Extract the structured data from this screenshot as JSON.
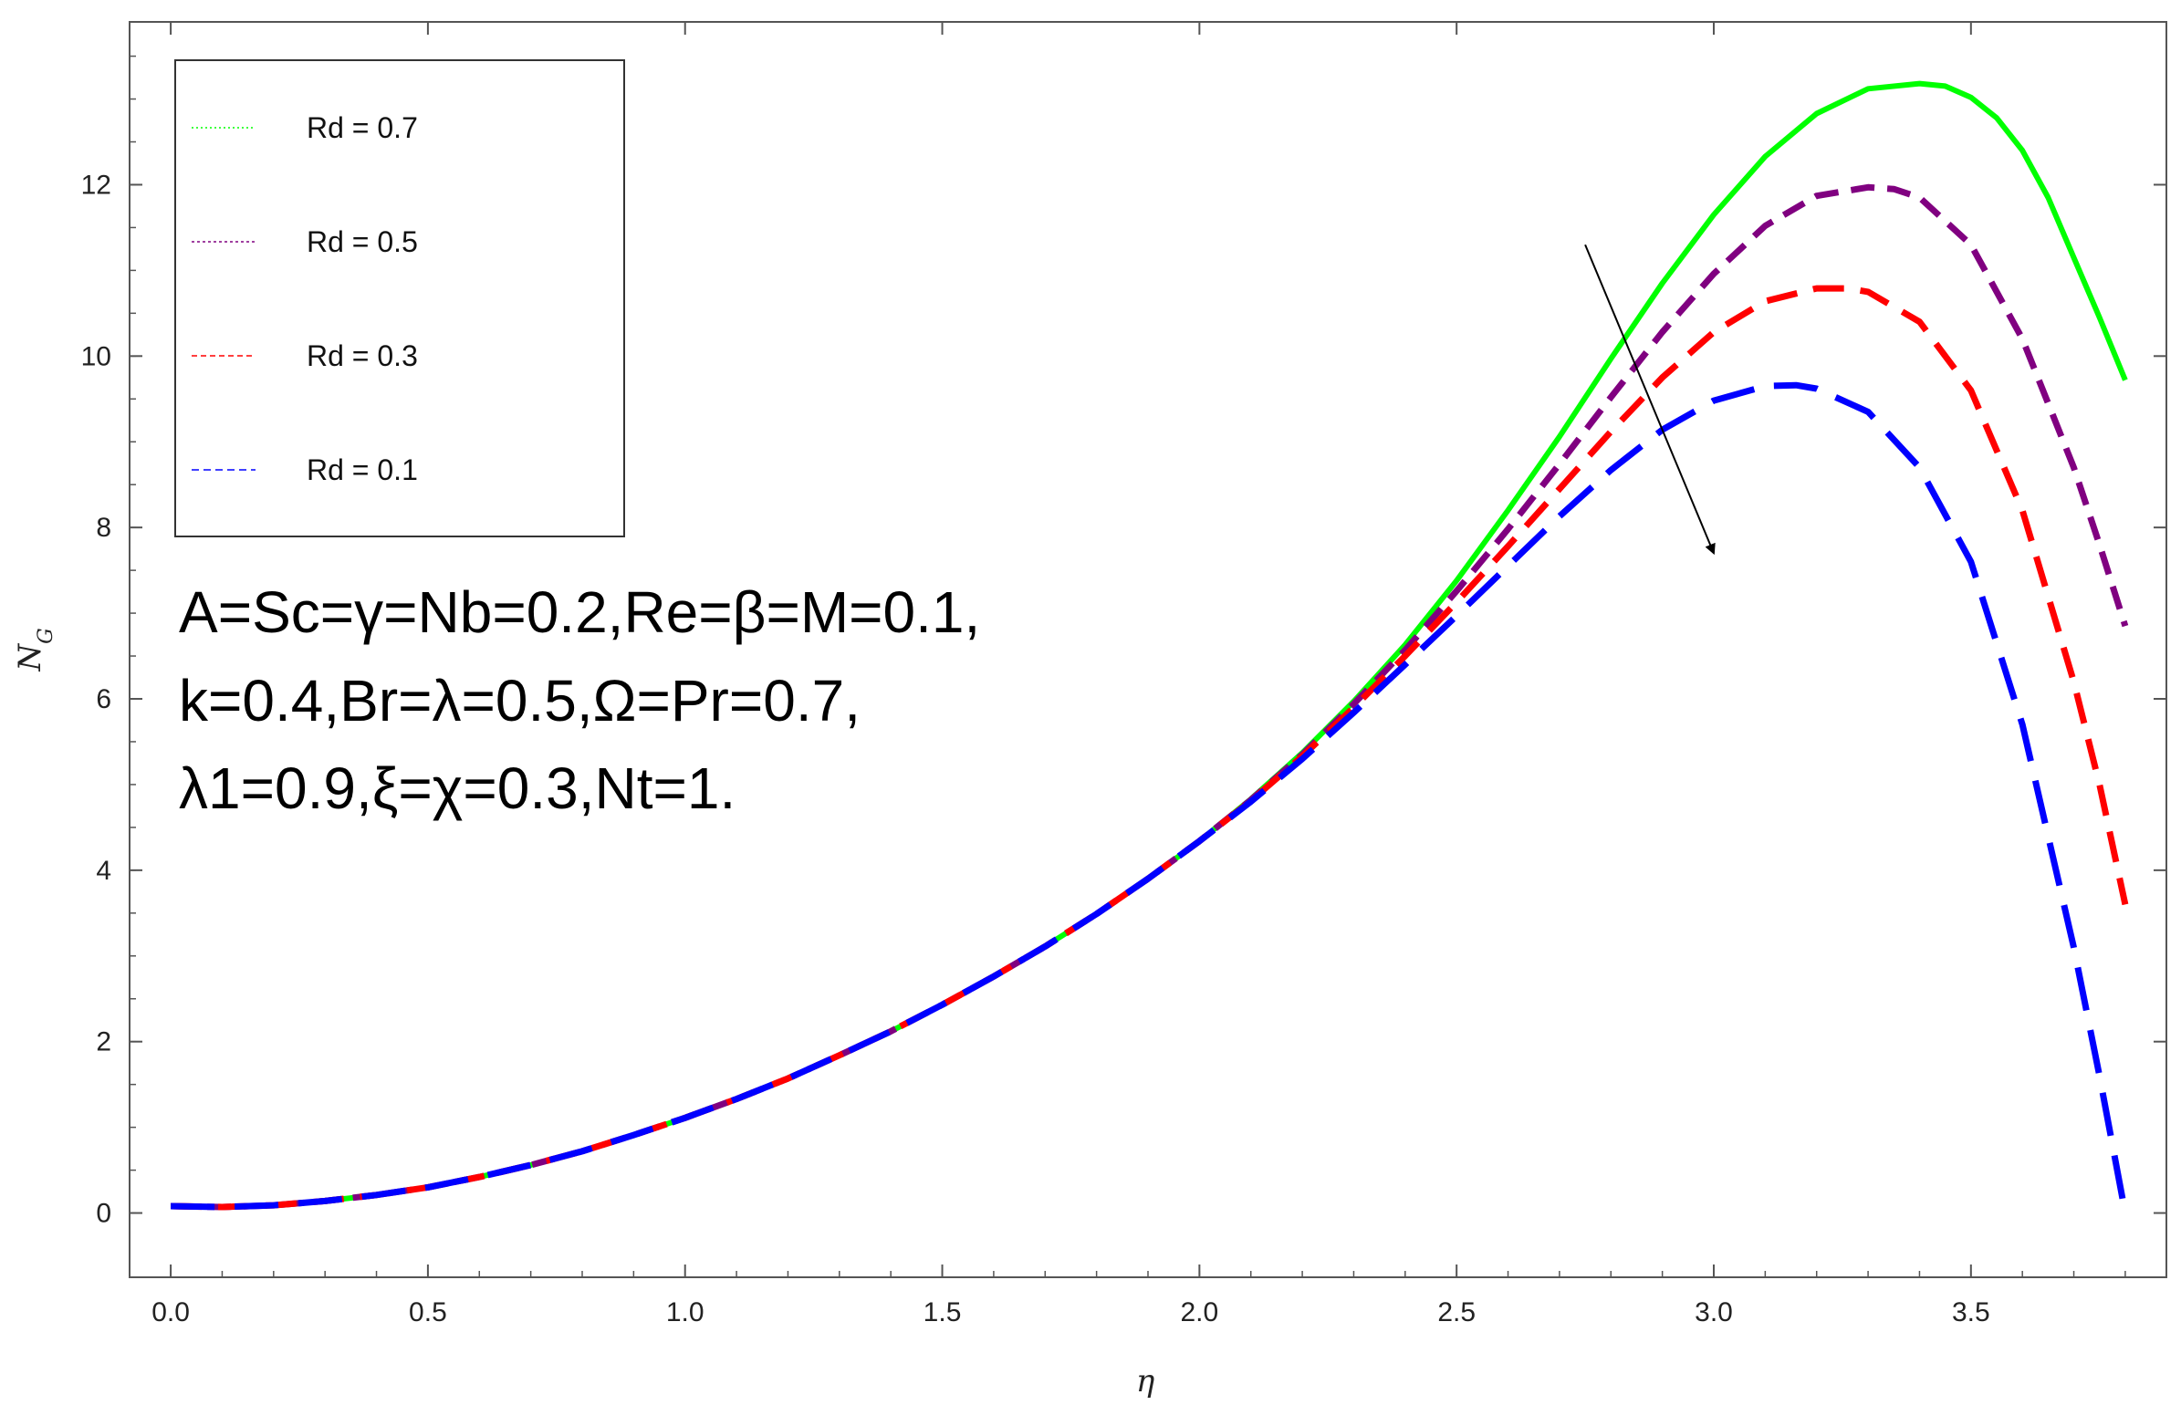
{
  "chart_data": {
    "type": "line",
    "title": "",
    "xlabel": "η",
    "ylabel_main": "N",
    "ylabel_sub": "G",
    "xlim": [
      -0.08,
      3.88
    ],
    "ylim": [
      -0.75,
      13.9
    ],
    "xticks": [
      "0.0",
      "0.5",
      "1.0",
      "1.5",
      "2.0",
      "2.5",
      "3.0",
      "3.5"
    ],
    "yticks": [
      "0",
      "2",
      "4",
      "6",
      "8",
      "10",
      "12"
    ],
    "legend_position": "top-left",
    "series": [
      {
        "name": "Rd = 0.7",
        "color": "#00ff00",
        "style": "solid",
        "x": [
          0.0,
          0.1,
          0.2,
          0.3,
          0.4,
          0.5,
          0.6,
          0.7,
          0.8,
          0.9,
          1.0,
          1.1,
          1.2,
          1.3,
          1.4,
          1.5,
          1.6,
          1.7,
          1.8,
          1.9,
          2.0,
          2.1,
          2.2,
          2.3,
          2.4,
          2.5,
          2.6,
          2.7,
          2.8,
          2.9,
          3.0,
          3.1,
          3.2,
          3.3,
          3.4,
          3.45,
          3.5,
          3.55,
          3.6,
          3.65,
          3.7,
          3.75,
          3.8
        ],
        "y": [
          0.08,
          0.07,
          0.09,
          0.14,
          0.21,
          0.3,
          0.42,
          0.56,
          0.72,
          0.91,
          1.11,
          1.33,
          1.57,
          1.84,
          2.12,
          2.43,
          2.76,
          3.11,
          3.49,
          3.9,
          4.34,
          4.83,
          5.37,
          5.97,
          6.63,
          7.38,
          8.2,
          9.06,
          9.97,
          10.85,
          11.65,
          12.33,
          12.83,
          13.12,
          13.18,
          13.15,
          13.02,
          12.78,
          12.4,
          11.85,
          11.15,
          10.45,
          9.72
        ]
      },
      {
        "name": "Rd = 0.5",
        "color": "#800080",
        "style": "dashed",
        "x": [
          0.0,
          0.1,
          0.2,
          0.3,
          0.4,
          0.5,
          0.6,
          0.7,
          0.8,
          0.9,
          1.0,
          1.1,
          1.2,
          1.3,
          1.4,
          1.5,
          1.6,
          1.7,
          1.8,
          1.9,
          2.0,
          2.1,
          2.2,
          2.3,
          2.4,
          2.5,
          2.6,
          2.7,
          2.8,
          2.9,
          3.0,
          3.1,
          3.2,
          3.3,
          3.35,
          3.4,
          3.5,
          3.6,
          3.7,
          3.75,
          3.8
        ],
        "y": [
          0.08,
          0.07,
          0.09,
          0.14,
          0.21,
          0.3,
          0.42,
          0.56,
          0.72,
          0.91,
          1.11,
          1.33,
          1.57,
          1.84,
          2.12,
          2.43,
          2.76,
          3.11,
          3.49,
          3.9,
          4.34,
          4.82,
          5.35,
          5.94,
          6.57,
          7.26,
          7.98,
          8.74,
          9.52,
          10.28,
          10.96,
          11.52,
          11.87,
          11.97,
          11.95,
          11.85,
          11.3,
          10.2,
          8.7,
          7.8,
          6.85
        ]
      },
      {
        "name": "Rd = 0.3",
        "color": "#ff0000",
        "style": "dashed",
        "x": [
          0.0,
          0.1,
          0.2,
          0.3,
          0.4,
          0.5,
          0.6,
          0.7,
          0.8,
          0.9,
          1.0,
          1.1,
          1.2,
          1.3,
          1.4,
          1.5,
          1.6,
          1.7,
          1.8,
          1.9,
          2.0,
          2.1,
          2.2,
          2.3,
          2.4,
          2.5,
          2.6,
          2.7,
          2.8,
          2.9,
          3.0,
          3.1,
          3.2,
          3.26,
          3.3,
          3.4,
          3.5,
          3.6,
          3.7,
          3.75,
          3.8
        ],
        "y": [
          0.08,
          0.07,
          0.09,
          0.14,
          0.21,
          0.3,
          0.42,
          0.56,
          0.72,
          0.91,
          1.11,
          1.33,
          1.57,
          1.84,
          2.12,
          2.43,
          2.76,
          3.11,
          3.49,
          3.9,
          4.34,
          4.81,
          5.33,
          5.9,
          6.5,
          7.13,
          7.78,
          8.45,
          9.12,
          9.75,
          10.28,
          10.64,
          10.79,
          10.79,
          10.75,
          10.4,
          9.6,
          8.2,
          6.2,
          5.0,
          3.6
        ]
      },
      {
        "name": "Rd = 0.1",
        "color": "#0000ff",
        "style": "dashed",
        "x": [
          0.0,
          0.1,
          0.2,
          0.3,
          0.4,
          0.5,
          0.6,
          0.7,
          0.8,
          0.9,
          1.0,
          1.1,
          1.2,
          1.3,
          1.4,
          1.5,
          1.6,
          1.7,
          1.8,
          1.9,
          2.0,
          2.1,
          2.2,
          2.3,
          2.4,
          2.5,
          2.6,
          2.7,
          2.8,
          2.9,
          3.0,
          3.1,
          3.16,
          3.2,
          3.3,
          3.4,
          3.5,
          3.6,
          3.7,
          3.75,
          3.8
        ],
        "y": [
          0.08,
          0.07,
          0.09,
          0.14,
          0.21,
          0.3,
          0.42,
          0.56,
          0.72,
          0.91,
          1.11,
          1.33,
          1.57,
          1.84,
          2.12,
          2.43,
          2.76,
          3.11,
          3.49,
          3.9,
          4.34,
          4.8,
          5.3,
          5.84,
          6.4,
          6.97,
          7.55,
          8.13,
          8.67,
          9.14,
          9.48,
          9.65,
          9.66,
          9.62,
          9.35,
          8.7,
          7.6,
          5.7,
          3.1,
          1.6,
          0.0
        ]
      }
    ],
    "annotation_lines": [
      "A=Sc=γ=Nb=0.2,Re=β=M=0.1,",
      "k=0.4,Br=λ=0.5,Ω=Pr=0.7,",
      "λ1=0.9,ξ=χ=0.3,Nt=1."
    ],
    "arrow": {
      "from": [
        2.75,
        11.3
      ],
      "to": [
        3.0,
        7.7
      ]
    }
  }
}
